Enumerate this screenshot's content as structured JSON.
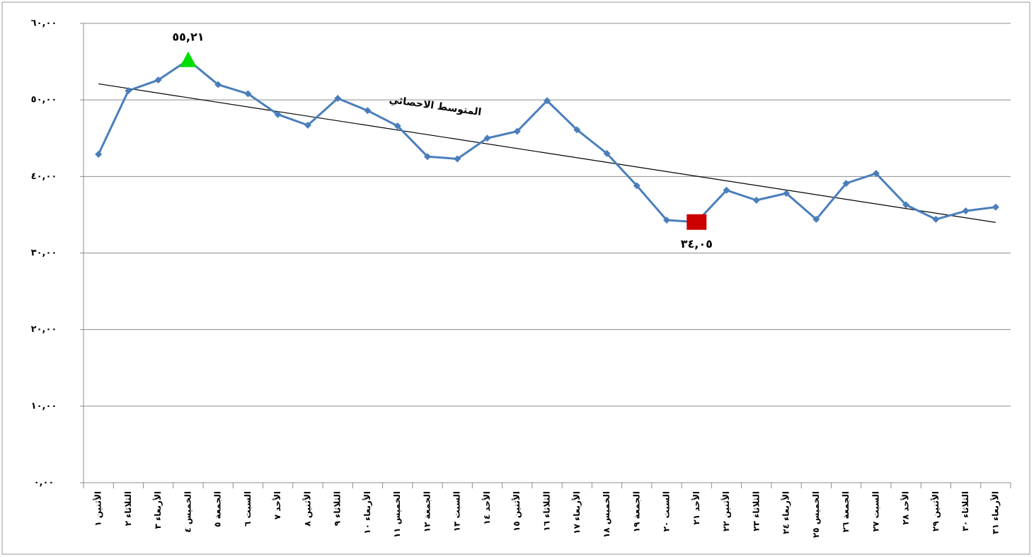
{
  "chart_data": {
    "type": "line",
    "categories": [
      "الأثنين ١",
      "الثلاثاء ٢",
      "الأربعاء ٣",
      "الخميس ٤",
      "الجمعة ٥",
      "السبت ٦",
      "الأحد ٧",
      "الأثنين ٨",
      "الثلاثاء ٩",
      "الأربعاء ١٠",
      "الخميس ١١",
      "الجمعة ١٢",
      "السبت ١٣",
      "الأحد ١٤",
      "الأثنين ١٥",
      "الثلاثاء ١٦",
      "الأربعاء ١٧",
      "الخميس ١٨",
      "الجمعة ١٩",
      "السبت ٢٠",
      "الأحد ٢١",
      "الأثنين ٢٢",
      "الثلاثاء ٢٣",
      "الأربعاء ٢٤",
      "الخميس ٢٥",
      "الجمعة ٢٦",
      "السبت ٢٧",
      "الأحد ٢٨",
      "الأثنين ٢٩",
      "الثلاثاء ٣٠",
      "الأربعاء ٣١"
    ],
    "series": [
      {
        "color": "#4a7ebb",
        "values": [
          42.9,
          51.2,
          52.6,
          55.21,
          52.0,
          50.8,
          48.1,
          46.7,
          50.2,
          48.6,
          46.6,
          42.6,
          42.3,
          45.0,
          45.9,
          49.9,
          46.1,
          43.0,
          38.8,
          34.3,
          34.05,
          38.2,
          36.9,
          37.8,
          34.4,
          39.1,
          40.4,
          36.3,
          34.4,
          35.5,
          36.0
        ]
      }
    ],
    "ylim": [
      0,
      60
    ],
    "yticks": [
      {
        "value": 0,
        "label": "٠,٠٠"
      },
      {
        "value": 10,
        "label": "١٠,٠٠"
      },
      {
        "value": 20,
        "label": "٢٠,٠٠"
      },
      {
        "value": 30,
        "label": "٣٠,٠٠"
      },
      {
        "value": 40,
        "label": "٤٠,٠٠"
      },
      {
        "value": 50,
        "label": "٥٠,٠٠"
      },
      {
        "value": 60,
        "label": "٦٠,٠٠"
      }
    ],
    "grid": true,
    "trendline": {
      "label": "المتوسط الاحصائي",
      "start": 52.1,
      "end": 34.0,
      "color": "#000000"
    },
    "annotations": [
      {
        "category": "الخميس ٤",
        "value": 55.21,
        "label": "٥٥,٢١",
        "marker": "triangle",
        "color": "#00dd00"
      },
      {
        "category": "الأحد ٢١",
        "value": 34.05,
        "label": "٣٤,٠٥",
        "marker": "square",
        "color": "#cc0000"
      }
    ]
  }
}
